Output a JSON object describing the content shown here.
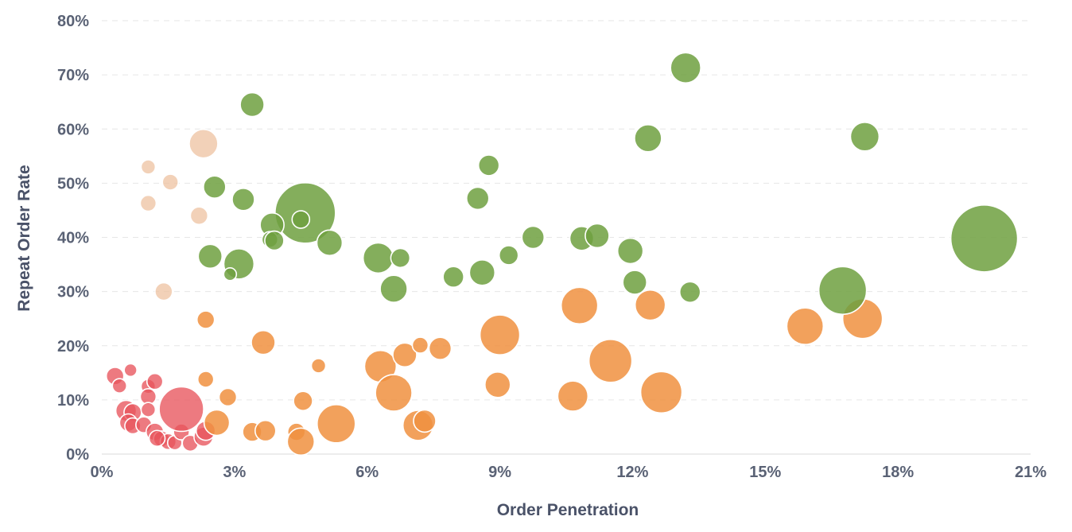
{
  "chart_data": {
    "type": "scatter",
    "xlabel": "Order Penetration",
    "ylabel": "Repeat Order Rate",
    "x_unit": "%",
    "y_unit": "%",
    "xlim": [
      0,
      21
    ],
    "ylim": [
      0,
      80
    ],
    "x_ticks": [
      "0%",
      "3%",
      "6%",
      "9%",
      "12%",
      "15%",
      "18%",
      "21%"
    ],
    "y_ticks": [
      "0%",
      "10%",
      "20%",
      "30%",
      "40%",
      "50%",
      "60%",
      "70%",
      "80%"
    ],
    "x_tick_values": [
      0,
      3,
      6,
      9,
      12,
      15,
      18,
      21
    ],
    "y_tick_values": [
      0,
      10,
      20,
      30,
      40,
      50,
      60,
      70,
      80
    ],
    "grid": true,
    "legend": false,
    "size_encoding": "bubble area",
    "series": [
      {
        "color": "#eec2a0",
        "opacity": 0.75,
        "points": [
          {
            "x": 2.3,
            "y": 57.3,
            "s": 18
          },
          {
            "x": 1.05,
            "y": 53.0,
            "s": 9
          },
          {
            "x": 1.55,
            "y": 50.2,
            "s": 10
          },
          {
            "x": 1.05,
            "y": 46.3,
            "s": 10
          },
          {
            "x": 2.2,
            "y": 44.0,
            "s": 11
          },
          {
            "x": 1.4,
            "y": 30.0,
            "s": 11
          }
        ]
      },
      {
        "color": "#e8555c",
        "opacity": 0.78,
        "points": [
          {
            "x": 0.3,
            "y": 14.4,
            "s": 11
          },
          {
            "x": 0.65,
            "y": 15.5,
            "s": 8
          },
          {
            "x": 0.4,
            "y": 12.6,
            "s": 9
          },
          {
            "x": 1.05,
            "y": 12.5,
            "s": 9
          },
          {
            "x": 1.2,
            "y": 13.4,
            "s": 10
          },
          {
            "x": 1.05,
            "y": 10.6,
            "s": 10
          },
          {
            "x": 0.55,
            "y": 8.0,
            "s": 13
          },
          {
            "x": 0.7,
            "y": 7.7,
            "s": 11
          },
          {
            "x": 1.05,
            "y": 8.2,
            "s": 9
          },
          {
            "x": 0.6,
            "y": 5.8,
            "s": 11
          },
          {
            "x": 0.7,
            "y": 5.2,
            "s": 10
          },
          {
            "x": 0.95,
            "y": 5.4,
            "s": 10
          },
          {
            "x": 1.2,
            "y": 4.1,
            "s": 11
          },
          {
            "x": 1.35,
            "y": 2.8,
            "s": 10
          },
          {
            "x": 1.5,
            "y": 2.3,
            "s": 10
          },
          {
            "x": 1.25,
            "y": 2.9,
            "s": 10
          },
          {
            "x": 1.65,
            "y": 2.1,
            "s": 9
          },
          {
            "x": 1.8,
            "y": 4.1,
            "s": 10
          },
          {
            "x": 2.0,
            "y": 2.0,
            "s": 10
          },
          {
            "x": 2.3,
            "y": 3.2,
            "s": 12
          },
          {
            "x": 2.35,
            "y": 4.3,
            "s": 12
          },
          {
            "x": 1.8,
            "y": 8.3,
            "s": 28
          }
        ]
      },
      {
        "color": "#f0913f",
        "opacity": 0.85,
        "points": [
          {
            "x": 2.35,
            "y": 24.8,
            "s": 11
          },
          {
            "x": 2.35,
            "y": 13.8,
            "s": 10
          },
          {
            "x": 2.6,
            "y": 5.8,
            "s": 16
          },
          {
            "x": 2.85,
            "y": 10.5,
            "s": 11
          },
          {
            "x": 3.4,
            "y": 4.1,
            "s": 12
          },
          {
            "x": 3.65,
            "y": 20.6,
            "s": 15
          },
          {
            "x": 3.7,
            "y": 4.3,
            "s": 13
          },
          {
            "x": 4.4,
            "y": 4.1,
            "s": 11
          },
          {
            "x": 4.5,
            "y": 2.3,
            "s": 17
          },
          {
            "x": 4.55,
            "y": 9.8,
            "s": 12
          },
          {
            "x": 4.9,
            "y": 16.3,
            "s": 9
          },
          {
            "x": 5.3,
            "y": 5.6,
            "s": 24
          },
          {
            "x": 6.3,
            "y": 16.2,
            "s": 20
          },
          {
            "x": 6.6,
            "y": 11.3,
            "s": 23
          },
          {
            "x": 6.85,
            "y": 18.3,
            "s": 15
          },
          {
            "x": 7.15,
            "y": 5.3,
            "s": 19
          },
          {
            "x": 7.2,
            "y": 20.1,
            "s": 10
          },
          {
            "x": 7.3,
            "y": 6.1,
            "s": 14
          },
          {
            "x": 7.65,
            "y": 19.5,
            "s": 14
          },
          {
            "x": 9.0,
            "y": 22.0,
            "s": 25
          },
          {
            "x": 8.95,
            "y": 12.8,
            "s": 16
          },
          {
            "x": 10.65,
            "y": 10.7,
            "s": 19
          },
          {
            "x": 10.8,
            "y": 27.4,
            "s": 23
          },
          {
            "x": 11.5,
            "y": 17.2,
            "s": 27
          },
          {
            "x": 12.4,
            "y": 27.5,
            "s": 19
          },
          {
            "x": 12.65,
            "y": 11.4,
            "s": 26
          },
          {
            "x": 15.9,
            "y": 23.6,
            "s": 23
          },
          {
            "x": 17.2,
            "y": 25.0,
            "s": 25
          }
        ]
      },
      {
        "color": "#6fa040",
        "opacity": 0.85,
        "points": [
          {
            "x": 3.4,
            "y": 64.5,
            "s": 15
          },
          {
            "x": 2.55,
            "y": 49.3,
            "s": 14
          },
          {
            "x": 3.2,
            "y": 47.0,
            "s": 14
          },
          {
            "x": 4.6,
            "y": 44.5,
            "s": 38
          },
          {
            "x": 4.5,
            "y": 43.3,
            "s": 11
          },
          {
            "x": 3.85,
            "y": 42.3,
            "s": 15
          },
          {
            "x": 3.8,
            "y": 39.6,
            "s": 10
          },
          {
            "x": 3.9,
            "y": 39.4,
            "s": 12
          },
          {
            "x": 5.15,
            "y": 39.0,
            "s": 16
          },
          {
            "x": 2.45,
            "y": 36.5,
            "s": 15
          },
          {
            "x": 3.1,
            "y": 35.1,
            "s": 19
          },
          {
            "x": 2.9,
            "y": 33.2,
            "s": 8
          },
          {
            "x": 6.25,
            "y": 36.2,
            "s": 19
          },
          {
            "x": 6.75,
            "y": 36.2,
            "s": 12
          },
          {
            "x": 6.6,
            "y": 30.5,
            "s": 17
          },
          {
            "x": 7.95,
            "y": 32.7,
            "s": 13
          },
          {
            "x": 8.5,
            "y": 47.2,
            "s": 14
          },
          {
            "x": 8.75,
            "y": 53.3,
            "s": 13
          },
          {
            "x": 8.6,
            "y": 33.5,
            "s": 16
          },
          {
            "x": 9.2,
            "y": 36.7,
            "s": 12
          },
          {
            "x": 9.75,
            "y": 40.0,
            "s": 14
          },
          {
            "x": 10.85,
            "y": 39.8,
            "s": 15
          },
          {
            "x": 11.2,
            "y": 40.3,
            "s": 15
          },
          {
            "x": 11.95,
            "y": 37.5,
            "s": 16
          },
          {
            "x": 12.05,
            "y": 31.7,
            "s": 15
          },
          {
            "x": 12.35,
            "y": 58.3,
            "s": 17
          },
          {
            "x": 13.2,
            "y": 71.3,
            "s": 19
          },
          {
            "x": 13.3,
            "y": 29.9,
            "s": 13
          },
          {
            "x": 16.75,
            "y": 30.2,
            "s": 30
          },
          {
            "x": 17.25,
            "y": 58.6,
            "s": 18
          },
          {
            "x": 19.95,
            "y": 39.8,
            "s": 42
          }
        ]
      }
    ]
  }
}
